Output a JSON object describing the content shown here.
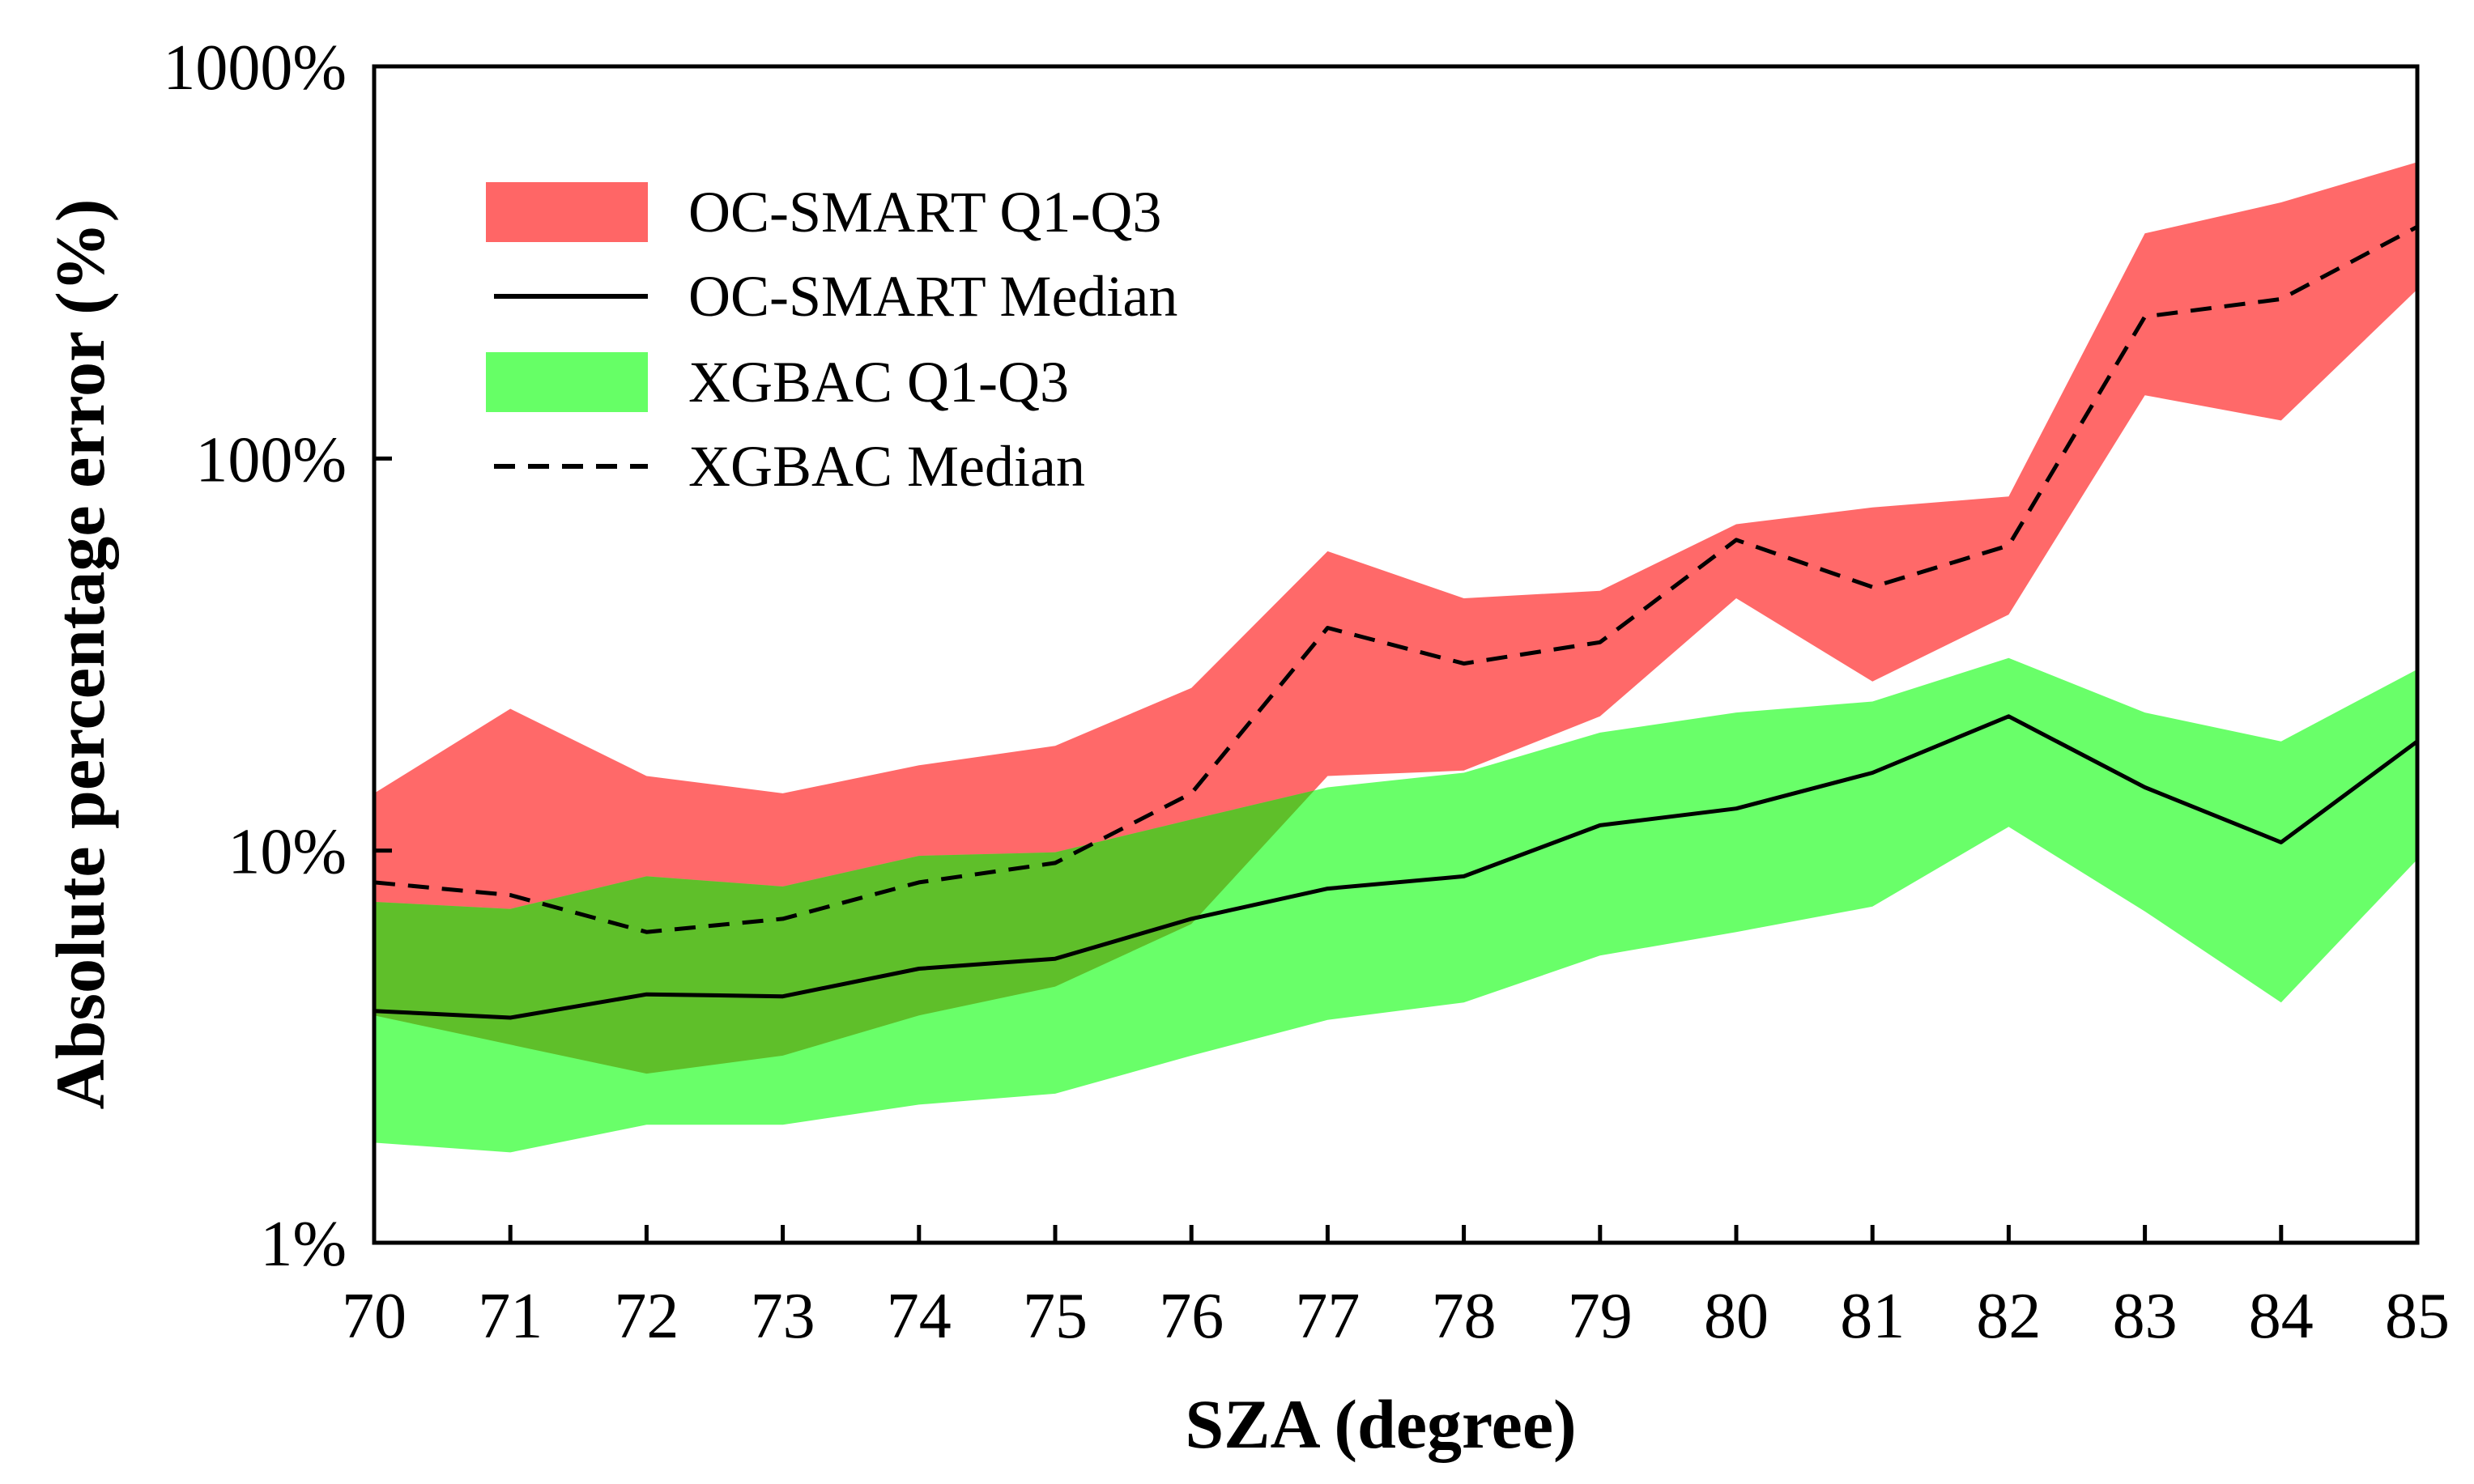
{
  "chart_data": {
    "type": "area",
    "title": "",
    "xlabel": "SZA (degree)",
    "ylabel": "Absolute percentage error (%)",
    "yscale": "log",
    "x": [
      70,
      71,
      72,
      73,
      74,
      75,
      76,
      77,
      78,
      79,
      80,
      81,
      82,
      83,
      84,
      85
    ],
    "xlim": [
      70,
      85
    ],
    "ylim": [
      1,
      1000
    ],
    "x_tick_labels": [
      "70",
      "71",
      "72",
      "73",
      "74",
      "75",
      "76",
      "77",
      "78",
      "79",
      "80",
      "81",
      "82",
      "83",
      "84",
      "85"
    ],
    "y_ticks": [
      {
        "value": 1,
        "label": "1%"
      },
      {
        "value": 10,
        "label": "10%"
      },
      {
        "value": 100,
        "label": "100%"
      },
      {
        "value": 1000,
        "label": "1000%"
      }
    ],
    "legend_position": "top-left",
    "series": [
      {
        "name": "OC-SMART Q1-Q3",
        "kind": "band",
        "color": "#ff6666",
        "q1": [
          3.8,
          3.2,
          2.7,
          3.0,
          3.8,
          4.5,
          6.5,
          15.5,
          16.0,
          22.0,
          44.0,
          27.0,
          40.0,
          145.0,
          125.0,
          270.0
        ],
        "q3": [
          14.0,
          23.0,
          15.5,
          14.0,
          16.5,
          18.5,
          26.0,
          58.0,
          44.0,
          46.0,
          68.0,
          75.0,
          80.0,
          375.0,
          450.0,
          570.0
        ]
      },
      {
        "name": "OC-SMART Median",
        "kind": "line",
        "style": "solid",
        "color": "#000000",
        "values": [
          3.9,
          3.75,
          4.3,
          4.25,
          5.0,
          5.3,
          6.7,
          8.0,
          8.6,
          11.6,
          12.8,
          15.8,
          22.0,
          14.5,
          10.5,
          19.0
        ]
      },
      {
        "name": "XGBAC Q1-Q3",
        "kind": "band",
        "color": "#66ff66",
        "q1": [
          1.8,
          1.7,
          2.0,
          2.0,
          2.25,
          2.4,
          3.0,
          3.7,
          4.1,
          5.4,
          6.2,
          7.2,
          11.5,
          7.0,
          4.1,
          9.5
        ],
        "q3": [
          7.4,
          7.1,
          8.6,
          8.1,
          9.7,
          9.9,
          12.0,
          14.5,
          15.8,
          20.0,
          22.5,
          24.0,
          31.0,
          22.5,
          19.0,
          29.0
        ]
      },
      {
        "name": "XGBAC Median",
        "kind": "line",
        "style": "dashed",
        "color": "#000000",
        "values": [
          8.3,
          7.7,
          6.2,
          6.7,
          8.3,
          9.3,
          14.0,
          37.0,
          30.0,
          34.0,
          62.0,
          47.0,
          60.0,
          230.0,
          255.0,
          390.0
        ]
      }
    ]
  }
}
